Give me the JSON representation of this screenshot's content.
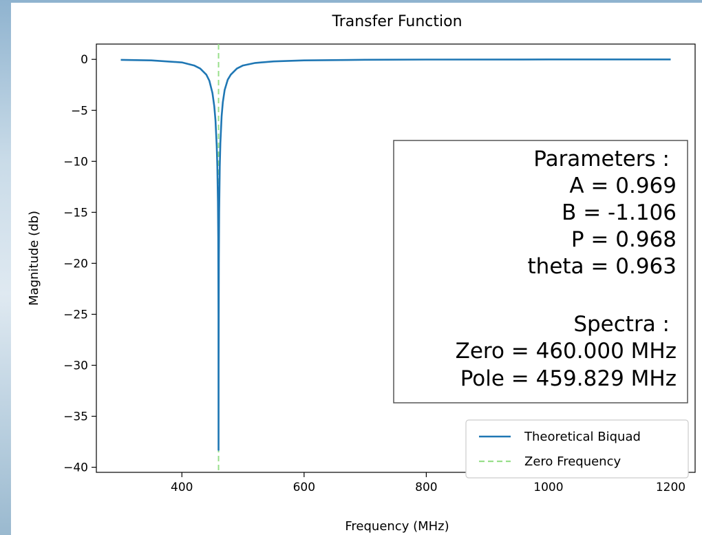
{
  "chart_data": {
    "type": "line",
    "title": "Transfer Function",
    "xlabel": "Frequency (MHz)",
    "ylabel": "Magnitude (db)",
    "xlim": [
      260,
      1240
    ],
    "ylim": [
      -40.5,
      1.5
    ],
    "xticks": [
      400,
      600,
      800,
      1000,
      1200
    ],
    "yticks": [
      0,
      -5,
      -10,
      -15,
      -20,
      -25,
      -30,
      -35,
      -40
    ],
    "xtick_labels": [
      "400",
      "600",
      "800",
      "1000",
      "1200"
    ],
    "ytick_labels": [
      "0",
      "−5",
      "−10",
      "−15",
      "−20",
      "−25",
      "−30",
      "−35",
      "−40"
    ],
    "grid": false,
    "legend_position": "lower-right",
    "series": [
      {
        "name": "Theoretical Biquad",
        "style": "solid",
        "color": "#1f77b4",
        "x": [
          300,
          350,
          400,
          420,
          430,
          440,
          445,
          450,
          453,
          455,
          457,
          458,
          459,
          459.5,
          459.9,
          460,
          460.1,
          460.5,
          461,
          462,
          463,
          465,
          467,
          470,
          475,
          480,
          490,
          500,
          520,
          550,
          600,
          700,
          800,
          1000,
          1200
        ],
        "y": [
          -0.05,
          -0.1,
          -0.3,
          -0.6,
          -0.9,
          -1.5,
          -2.1,
          -3.3,
          -4.6,
          -6.0,
          -8.5,
          -10.5,
          -14.0,
          -17.5,
          -25.0,
          -38.3,
          -30.0,
          -20.0,
          -15.0,
          -10.5,
          -8.2,
          -5.6,
          -4.2,
          -3.0,
          -2.0,
          -1.5,
          -0.9,
          -0.6,
          -0.35,
          -0.2,
          -0.1,
          -0.04,
          -0.02,
          -0.01,
          -0.01
        ]
      },
      {
        "name": "Zero Frequency",
        "style": "dashed",
        "color": "#98df8a",
        "x_constant": 460
      }
    ],
    "annotation": {
      "lines": [
        "Parameters :",
        "A = 0.969",
        "B = -1.106",
        "P = 0.968",
        "theta = 0.963",
        "",
        "Spectra :",
        "Zero = 460.000 MHz",
        "Pole = 459.829 MHz"
      ]
    }
  }
}
